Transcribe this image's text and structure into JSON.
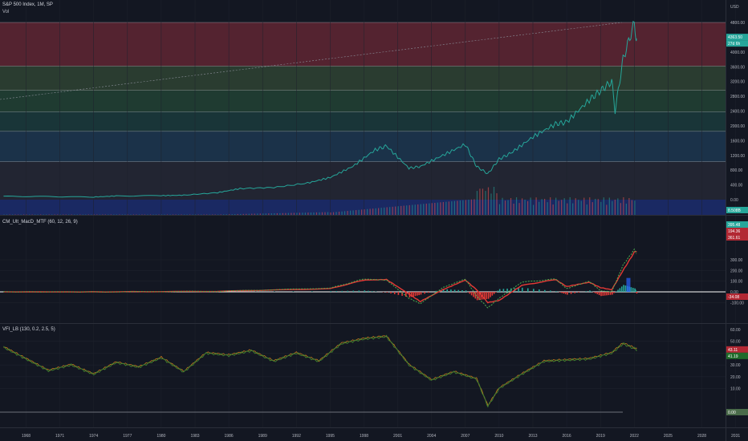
{
  "header": {
    "symbol_title": "S&P 500 Index, 1M, SP",
    "volume_label": "Vol",
    "currency": "USD"
  },
  "price_pane": {
    "y_ticks": [
      "4800.00",
      "4400.00",
      "4000.00",
      "3600.00",
      "3200.00",
      "2800.00",
      "2400.00",
      "2000.00",
      "1600.00",
      "1200.00",
      "800.00",
      "400.00",
      "0.00"
    ],
    "last_price_badge": "4363.50",
    "countdown_badge": "27d 6h",
    "volume_badge": "8.508B",
    "zones": [
      {
        "from": 3620,
        "to": 4800,
        "color": "#8a2d3c"
      },
      {
        "from": 2960,
        "to": 3620,
        "color": "#3e5b3c"
      },
      {
        "from": 2380,
        "to": 2960,
        "color": "#2a5a3e"
      },
      {
        "from": 1850,
        "to": 2380,
        "color": "#1f4f4a"
      },
      {
        "from": 1030,
        "to": 1850,
        "color": "#23496a"
      },
      {
        "from": 0,
        "to": 1030,
        "color": "#2f3240"
      }
    ]
  },
  "macd_pane": {
    "title": "CM_Ult_MacD_MTF (60, 12, 26, 9)",
    "y_ticks": [
      "300.00",
      "200.00",
      "100.00",
      "0.00",
      "-100.00"
    ],
    "badges": [
      {
        "text": "395.48",
        "color": "#26a69a"
      },
      {
        "text": "194.36",
        "color": "#b22833"
      },
      {
        "text": "361.61",
        "color": "#b22833"
      },
      {
        "text": "-34.08",
        "color": "#b22833"
      }
    ]
  },
  "vfi_pane": {
    "title": "VFI_LB (130, 0.2, 2.5, 5)",
    "y_ticks": [
      "60.00",
      "50.00",
      "40.00",
      "30.00",
      "20.00",
      "10.00",
      "-10.00"
    ],
    "badges": [
      {
        "text": "43.11",
        "color": "#b22833"
      },
      {
        "text": "41.19",
        "color": "#1f6b2a"
      },
      {
        "text": "0.00",
        "color": "#4a6b4a"
      }
    ]
  },
  "time_axis": {
    "labels": [
      "1968",
      "1971",
      "1974",
      "1977",
      "1980",
      "1983",
      "1986",
      "1989",
      "1992",
      "1995",
      "1998",
      "2001",
      "2004",
      "2007",
      "2010",
      "2013",
      "2016",
      "2019",
      "2022",
      "2025",
      "2028",
      "2031"
    ]
  },
  "chart_data": [
    {
      "type": "line",
      "title": "S&P 500 Index, 1M, SP",
      "ylabel": "USD",
      "ylim": [
        0,
        4800
      ],
      "x": [
        1966,
        1970,
        1974,
        1976,
        1980,
        1982,
        1985,
        1987,
        1990,
        1993,
        1995,
        1997,
        1999,
        2000,
        2002,
        2003,
        2005,
        2007,
        2008,
        2009,
        2010,
        2011,
        2013,
        2015,
        2016,
        2018,
        2019,
        2020,
        2020.3,
        2021,
        2022,
        2022.2
      ],
      "values": [
        90,
        85,
        70,
        100,
        110,
        120,
        190,
        300,
        330,
        450,
        600,
        900,
        1350,
        1450,
        850,
        900,
        1200,
        1500,
        900,
        700,
        1100,
        1250,
        1700,
        2050,
        2100,
        2700,
        2950,
        3200,
        2400,
        3800,
        4780,
        4363
      ],
      "color": "#26a69a"
    },
    {
      "type": "line",
      "title": "CM_Ult_MacD_MTF (60, 12, 26, 9)",
      "ylim": [
        -150,
        420
      ],
      "x": [
        1966,
        1975,
        1985,
        1995,
        1998,
        2000,
        2002,
        2003,
        2005,
        2007,
        2008,
        2009,
        2010,
        2012,
        2015,
        2016,
        2018,
        2019,
        2020,
        2021,
        2022,
        2022.2
      ],
      "series": [
        {
          "name": "MACD",
          "values": [
            0,
            0,
            5,
            35,
            120,
            110,
            -60,
            -110,
            40,
            120,
            -40,
            -150,
            -60,
            90,
            120,
            30,
            100,
            10,
            0,
            250,
            395,
            361
          ]
        },
        {
          "name": "Signal",
          "values": [
            0,
            0,
            5,
            30,
            110,
            115,
            -20,
            -90,
            20,
            110,
            20,
            -100,
            -80,
            60,
            115,
            50,
            90,
            40,
            20,
            200,
            370,
            380
          ]
        }
      ]
    },
    {
      "type": "line",
      "title": "VFI_LB (130, 0.2, 2.5, 5)",
      "ylim": [
        -10,
        60
      ],
      "x": [
        1966,
        1968,
        1970,
        1972,
        1974,
        1976,
        1978,
        1980,
        1982,
        1984,
        1986,
        1988,
        1990,
        1992,
        1994,
        1996,
        1998,
        2000,
        2002,
        2004,
        2006,
        2008,
        2009,
        2010,
        2012,
        2014,
        2016,
        2018,
        2020,
        2021,
        2022,
        2022.2
      ],
      "values": [
        45,
        35,
        25,
        30,
        22,
        32,
        28,
        36,
        24,
        40,
        38,
        42,
        33,
        40,
        33,
        48,
        52,
        54,
        30,
        17,
        24,
        18,
        -5,
        10,
        22,
        33,
        34,
        35,
        40,
        48,
        44,
        43
      ]
    }
  ]
}
